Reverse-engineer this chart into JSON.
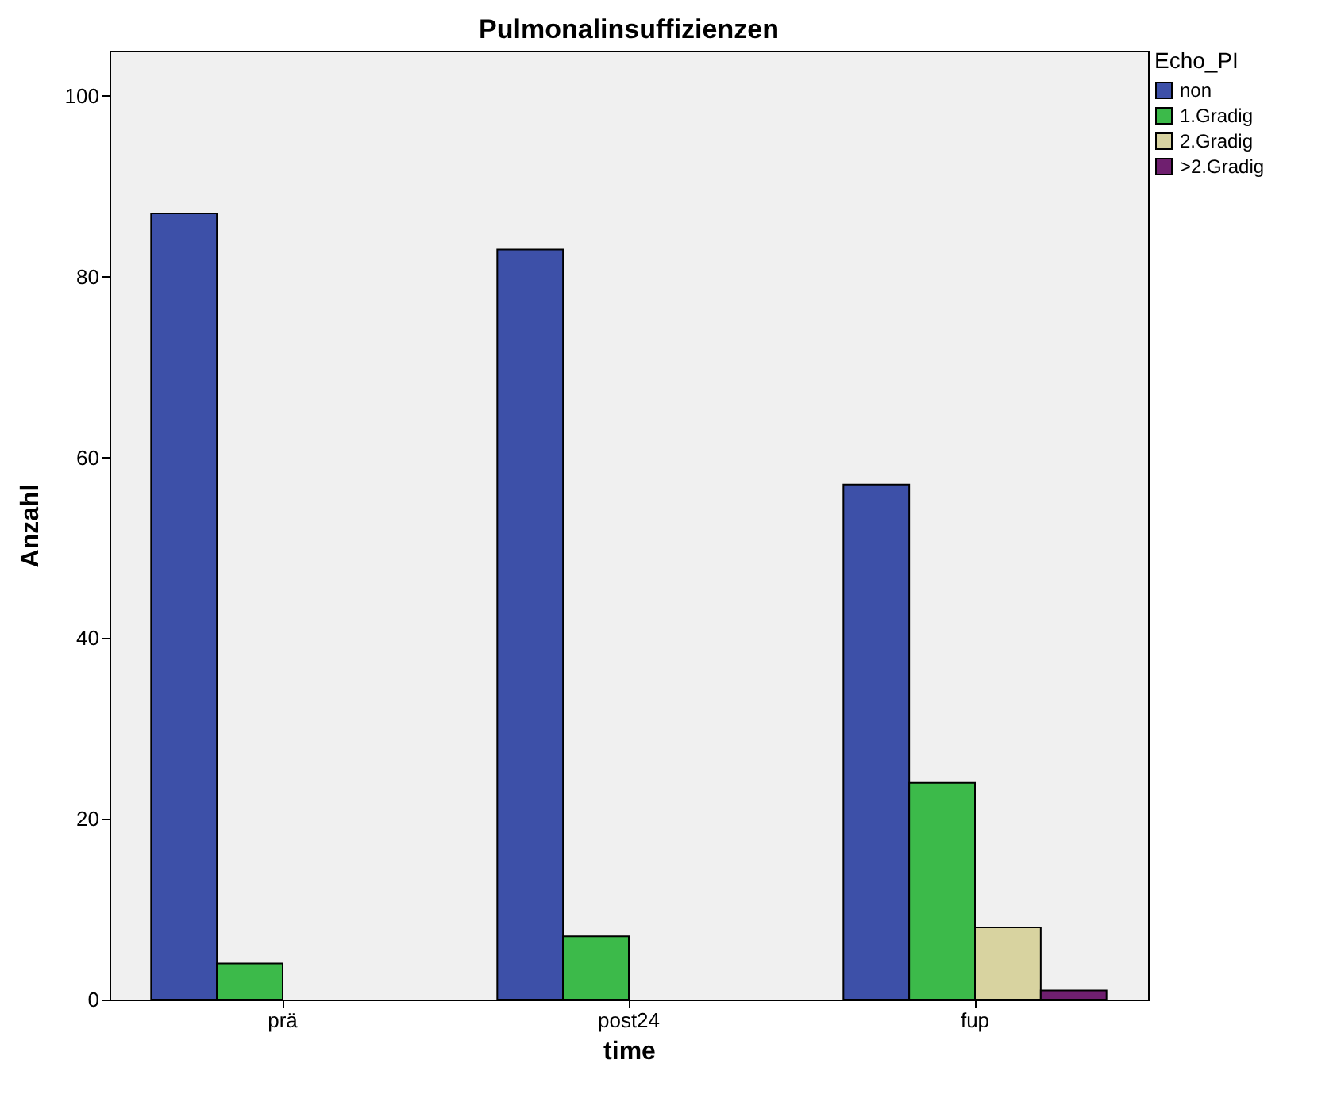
{
  "chart_data": {
    "type": "bar",
    "title": "Pulmonalinsuffizienzen",
    "xlabel": "time",
    "ylabel": "Anzahl",
    "legend_title": "Echo_PI",
    "categories": [
      "prä",
      "post24",
      "fup"
    ],
    "series": [
      {
        "name": "non",
        "color": "#3d50a8",
        "values": [
          87,
          83,
          57
        ]
      },
      {
        "name": "1.Gradig",
        "color": "#3cba4a",
        "values": [
          4,
          7,
          24
        ]
      },
      {
        "name": "2.Gradig",
        "color": "#d8d3a0",
        "values": [
          null,
          null,
          8
        ]
      },
      {
        "name": ">2.Gradig",
        "color": "#6f1f6f",
        "values": [
          null,
          null,
          1
        ]
      }
    ],
    "ylim": [
      0,
      105
    ],
    "yticks": [
      0,
      20,
      40,
      60,
      80,
      100
    ],
    "grid": false,
    "legend": "top right"
  }
}
